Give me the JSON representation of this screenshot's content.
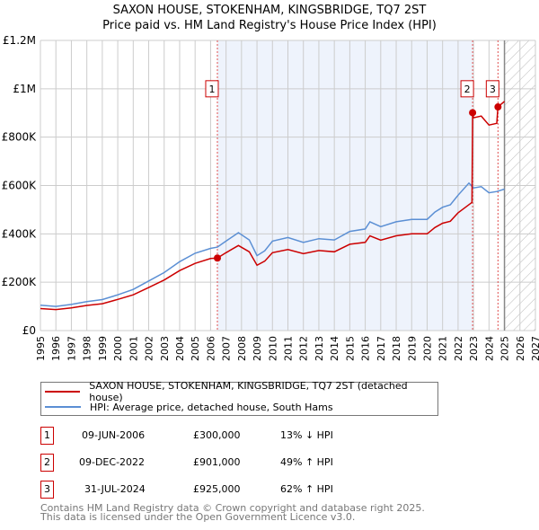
{
  "title": "SAXON HOUSE, STOKENHAM, KINGSBRIDGE, TQ7 2ST",
  "subtitle": "Price paid vs. HM Land Registry's House Price Index (HPI)",
  "chart_data": {
    "type": "line",
    "title": "SAXON HOUSE, STOKENHAM, KINGSBRIDGE, TQ7 2ST",
    "xlim": [
      1995,
      2027
    ],
    "ylim": [
      0,
      1200000
    ],
    "x_ticks": [
      "1995",
      "1996",
      "1997",
      "1998",
      "1999",
      "2000",
      "2001",
      "2002",
      "2003",
      "2004",
      "2005",
      "2006",
      "2007",
      "2008",
      "2009",
      "2010",
      "2011",
      "2012",
      "2013",
      "2014",
      "2015",
      "2016",
      "2017",
      "2018",
      "2019",
      "2020",
      "2021",
      "2022",
      "2023",
      "2024",
      "2025",
      "2026",
      "2027"
    ],
    "y_ticks": [
      {
        "v": 0,
        "label": "£0"
      },
      {
        "v": 200000,
        "label": "£200K"
      },
      {
        "v": 400000,
        "label": "£400K"
      },
      {
        "v": 600000,
        "label": "£600K"
      },
      {
        "v": 800000,
        "label": "£800K"
      },
      {
        "v": 1000000,
        "label": "£1M"
      },
      {
        "v": 1200000,
        "label": "£1.2M"
      }
    ],
    "shaded_range": [
      2006.44,
      2022.94
    ],
    "future_hatch_from": 2025,
    "series": [
      {
        "name": "SAXON HOUSE, STOKENHAM, KINGSBRIDGE, TQ7 2ST (detached house)",
        "color": "#cc0000",
        "x": [
          1995,
          1996,
          1997,
          1998,
          1999,
          2000,
          2001,
          2002,
          2003,
          2004,
          2005,
          2006,
          2006.44,
          2007,
          2007.8,
          2008.5,
          2009,
          2009.5,
          2010,
          2011,
          2012,
          2013,
          2014,
          2015,
          2016,
          2016.3,
          2017,
          2018,
          2019,
          2020,
          2020.5,
          2021,
          2021.5,
          2022,
          2022.9,
          2022.94,
          2023,
          2023.5,
          2024,
          2024.5,
          2024.58,
          2025
        ],
        "y": [
          91000,
          87000,
          94000,
          104000,
          111000,
          129000,
          148000,
          178000,
          209000,
          248000,
          278000,
          298000,
          300000,
          322000,
          352000,
          326000,
          270000,
          287000,
          322000,
          335000,
          318000,
          331000,
          326000,
          357000,
          365000,
          392000,
          374000,
          392000,
          400000,
          400000,
          426000,
          444000,
          452000,
          487000,
          530000,
          901000,
          880000,
          887000,
          850000,
          857000,
          925000,
          948000
        ]
      },
      {
        "name": "HPI: Average price, detached house, South Hams",
        "color": "#5b8fd4",
        "x": [
          1995,
          1996,
          1997,
          1998,
          1999,
          2000,
          2001,
          2002,
          2003,
          2004,
          2005,
          2006,
          2006.44,
          2007,
          2007.8,
          2008.5,
          2009,
          2009.5,
          2010,
          2011,
          2012,
          2013,
          2014,
          2015,
          2016,
          2016.3,
          2017,
          2018,
          2019,
          2020,
          2020.5,
          2021,
          2021.5,
          2022,
          2022.7,
          2023,
          2023.5,
          2024,
          2024.5,
          2025
        ],
        "y": [
          105000,
          100000,
          108000,
          120000,
          128000,
          148000,
          170000,
          205000,
          240000,
          285000,
          320000,
          340000,
          345000,
          370000,
          405000,
          375000,
          310000,
          330000,
          370000,
          385000,
          365000,
          380000,
          375000,
          410000,
          420000,
          450000,
          430000,
          450000,
          460000,
          460000,
          490000,
          510000,
          520000,
          560000,
          610000,
          590000,
          595000,
          570000,
          575000,
          585000
        ]
      }
    ],
    "sales": [
      {
        "label": "1",
        "x": 2006.44,
        "y": 300000
      },
      {
        "label": "2",
        "x": 2022.94,
        "y": 901000
      },
      {
        "label": "3",
        "x": 2024.58,
        "y": 925000
      }
    ]
  },
  "legend": {
    "red": "SAXON HOUSE, STOKENHAM, KINGSBRIDGE, TQ7 2ST (detached house)",
    "blue": "HPI: Average price, detached house, South Hams"
  },
  "transactions": [
    {
      "num": "1",
      "date": "09-JUN-2006",
      "price": "£300,000",
      "hpi": "13% ↓ HPI"
    },
    {
      "num": "2",
      "date": "09-DEC-2022",
      "price": "£901,000",
      "hpi": "49% ↑ HPI"
    },
    {
      "num": "3",
      "date": "31-JUL-2024",
      "price": "£925,000",
      "hpi": "62% ↑ HPI"
    }
  ],
  "footer": {
    "line1": "Contains HM Land Registry data © Crown copyright and database right 2025.",
    "line2": "This data is licensed under the Open Government Licence v3.0."
  }
}
